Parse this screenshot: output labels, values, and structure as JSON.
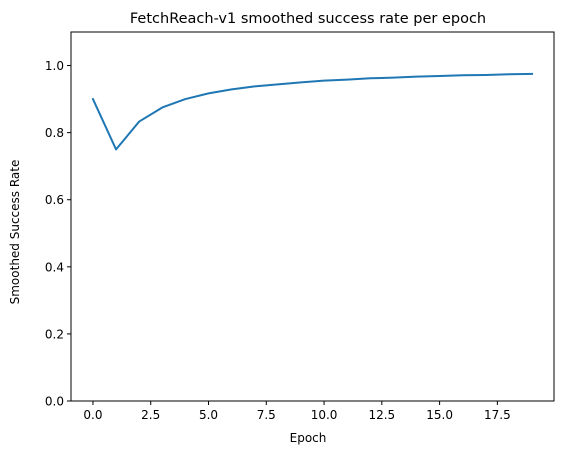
{
  "chart_data": {
    "type": "line",
    "title": "FetchReach-v1 smoothed success rate per epoch",
    "xlabel": "Epoch",
    "ylabel": "Smoothed Success Rate",
    "xlim": [
      -0.95,
      19.95
    ],
    "ylim": [
      0.0,
      1.1
    ],
    "x_ticks": [
      0.0,
      2.5,
      5.0,
      7.5,
      10.0,
      12.5,
      15.0,
      17.5
    ],
    "x_tick_labels": [
      "0.0",
      "2.5",
      "5.0",
      "7.5",
      "10.0",
      "12.5",
      "15.0",
      "17.5"
    ],
    "y_ticks": [
      0.0,
      0.2,
      0.4,
      0.6,
      0.8,
      1.0
    ],
    "y_tick_labels": [
      "0.0",
      "0.2",
      "0.4",
      "0.6",
      "0.8",
      "1.0"
    ],
    "grid": false,
    "series": [
      {
        "color": "#1f77b4",
        "x": [
          0,
          1,
          2,
          3,
          4,
          5,
          6,
          7,
          8,
          9,
          10,
          11,
          12,
          13,
          14,
          15,
          16,
          17,
          18,
          19
        ],
        "y": [
          0.9,
          0.75,
          0.833,
          0.875,
          0.9,
          0.917,
          0.929,
          0.938,
          0.944,
          0.95,
          0.955,
          0.958,
          0.962,
          0.964,
          0.967,
          0.969,
          0.971,
          0.972,
          0.974,
          0.975
        ]
      }
    ]
  }
}
